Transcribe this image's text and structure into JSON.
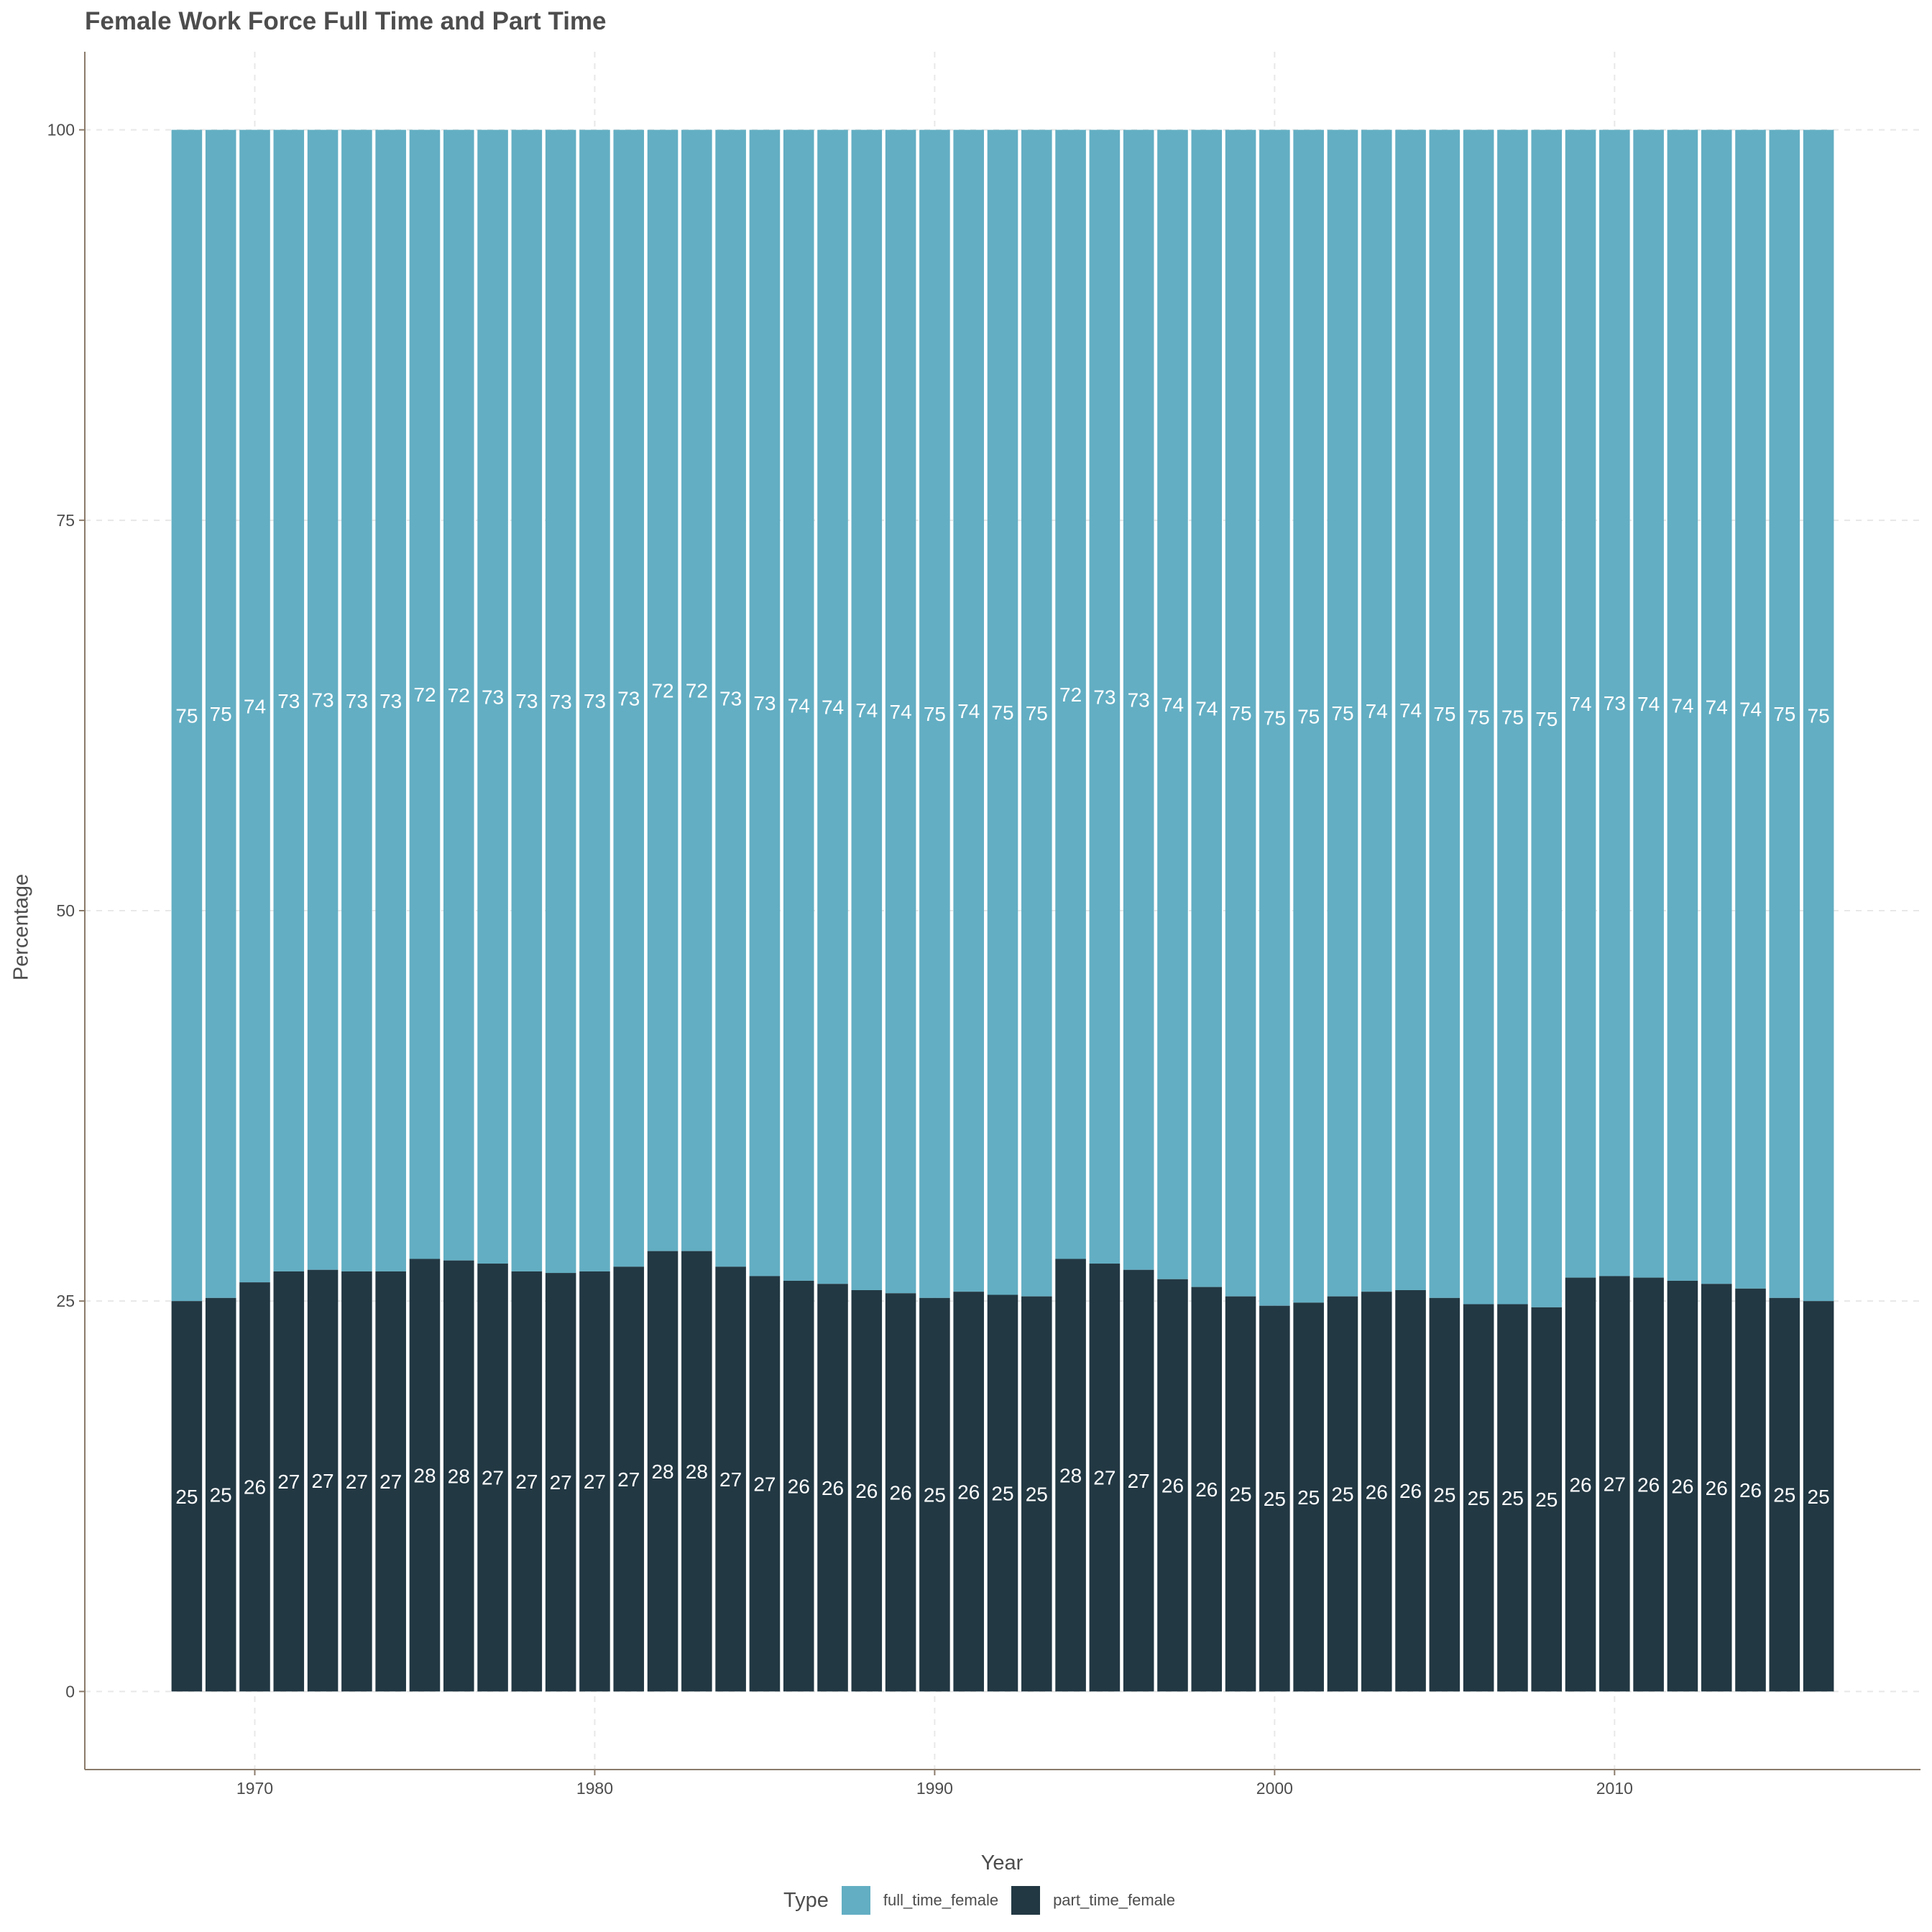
{
  "colors": {
    "full_time_female": "#63aec3",
    "part_time_female": "#223843",
    "axis_line": "#8b7b6b",
    "grid": "#e8e8e8",
    "text": "#4d4d4d",
    "bar_label": "#ffffff"
  },
  "chart_data": {
    "type": "bar",
    "stacked": true,
    "title": "Female Work Force Full Time and Part Time",
    "xlabel": "Year",
    "ylabel": "Percentage",
    "x": [
      1968,
      1969,
      1970,
      1971,
      1972,
      1973,
      1974,
      1975,
      1976,
      1977,
      1978,
      1979,
      1980,
      1981,
      1982,
      1983,
      1984,
      1985,
      1986,
      1987,
      1988,
      1989,
      1990,
      1991,
      1992,
      1993,
      1994,
      1995,
      1996,
      1997,
      1998,
      1999,
      2000,
      2001,
      2002,
      2003,
      2004,
      2005,
      2006,
      2007,
      2008,
      2009,
      2010,
      2011,
      2012,
      2013,
      2014,
      2015,
      2016
    ],
    "series": [
      {
        "name": "part_time_female",
        "values": [
          25,
          25.2,
          26.2,
          26.9,
          27,
          26.9,
          26.9,
          27.7,
          27.6,
          27.4,
          26.9,
          26.8,
          26.9,
          27.2,
          28.2,
          28.2,
          27.2,
          26.6,
          26.3,
          26.1,
          25.7,
          25.5,
          25.2,
          25.6,
          25.4,
          25.3,
          27.7,
          27.4,
          27,
          26.4,
          25.9,
          25.3,
          24.7,
          24.9,
          25.3,
          25.6,
          25.7,
          25.2,
          24.8,
          24.8,
          24.6,
          26.5,
          26.6,
          26.5,
          26.3,
          26.1,
          25.8,
          25.2,
          25
        ],
        "labels": [
          "25",
          "25",
          "26",
          "27",
          "27",
          "27",
          "27",
          "28",
          "28",
          "27",
          "27",
          "27",
          "27",
          "27",
          "28",
          "28",
          "27",
          "27",
          "26",
          "26",
          "26",
          "26",
          "25",
          "26",
          "25",
          "25",
          "28",
          "27",
          "27",
          "26",
          "26",
          "25",
          "25",
          "25",
          "25",
          "26",
          "26",
          "25",
          "25",
          "25",
          "25",
          "26",
          "27",
          "26",
          "26",
          "26",
          "26",
          "25",
          "25"
        ]
      },
      {
        "name": "full_time_female",
        "values": [
          75,
          74.8,
          73.8,
          73.1,
          73,
          73.1,
          73.1,
          72.3,
          72.4,
          72.6,
          73.1,
          73.2,
          73.1,
          72.8,
          71.8,
          71.8,
          72.8,
          73.4,
          73.7,
          73.9,
          74.3,
          74.5,
          74.8,
          74.4,
          74.6,
          74.7,
          72.3,
          72.6,
          73,
          73.6,
          74.1,
          74.7,
          75.3,
          75.1,
          74.7,
          74.4,
          74.3,
          74.8,
          75.2,
          75.2,
          75.4,
          73.5,
          73.4,
          73.5,
          73.7,
          73.9,
          74.2,
          74.8,
          75
        ],
        "labels": [
          "75",
          "75",
          "74",
          "73",
          "73",
          "73",
          "73",
          "72",
          "72",
          "73",
          "73",
          "73",
          "73",
          "73",
          "72",
          "72",
          "73",
          "73",
          "74",
          "74",
          "74",
          "74",
          "75",
          "74",
          "75",
          "75",
          "72",
          "73",
          "73",
          "74",
          "74",
          "75",
          "75",
          "75",
          "75",
          "74",
          "74",
          "75",
          "75",
          "75",
          "75",
          "74",
          "73",
          "74",
          "74",
          "74",
          "74",
          "75",
          "75"
        ]
      }
    ],
    "ylim": [
      -5,
      105
    ],
    "xlim": [
      1965,
      2019
    ],
    "y_ticks": [
      0,
      25,
      50,
      75,
      100
    ],
    "y_tick_labels": [
      "0",
      "25",
      "50",
      "75",
      "100"
    ],
    "x_ticks": [
      1970,
      1980,
      1990,
      2000,
      2010
    ],
    "x_tick_labels": [
      "1970",
      "1980",
      "1990",
      "2000",
      "2010"
    ],
    "grid": true,
    "legend_position": "bottom"
  },
  "legend": {
    "title": "Type",
    "items": [
      {
        "key": "full_time_female",
        "label": "full_time_female"
      },
      {
        "key": "part_time_female",
        "label": "part_time_female"
      }
    ]
  }
}
